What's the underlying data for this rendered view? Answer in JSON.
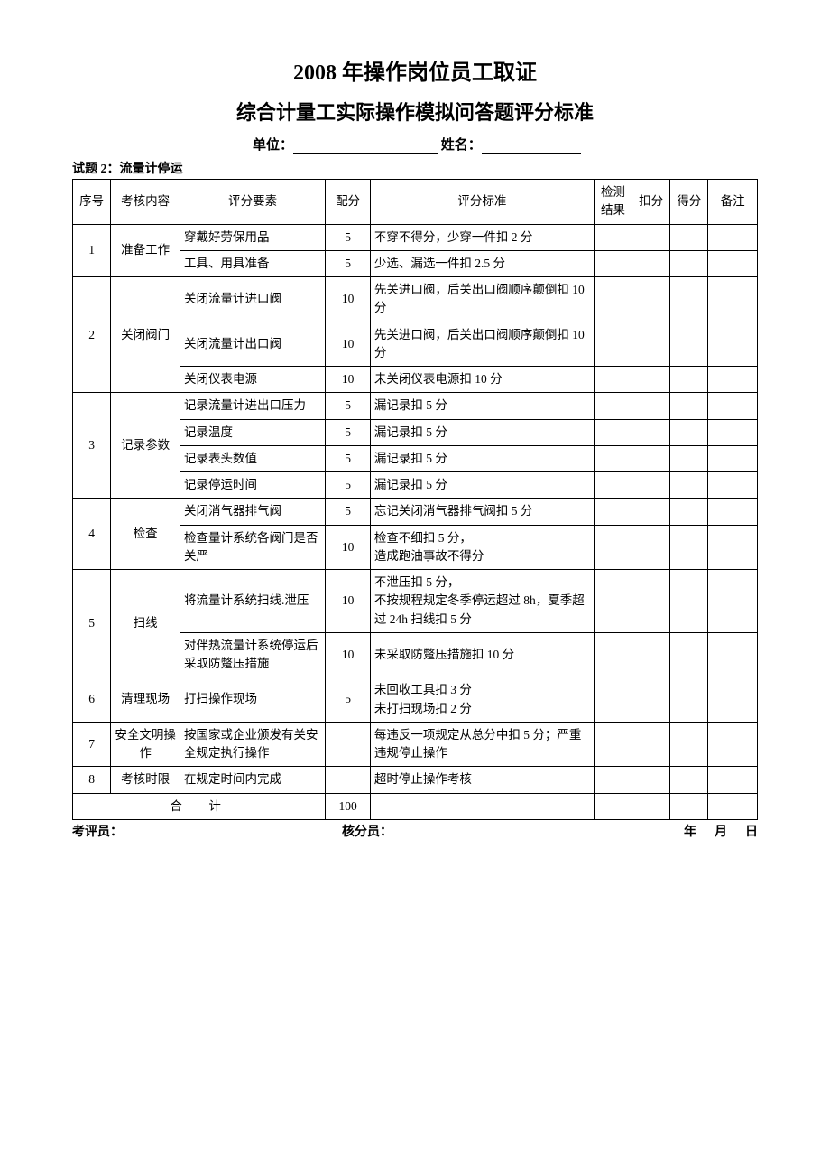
{
  "titles": {
    "line1": "2008 年操作岗位员工取证",
    "line2": "综合计量工实际操作模拟问答题评分标准"
  },
  "header": {
    "unit_label": "单位：",
    "name_label": "姓名：",
    "question_title": "试题 2：流量计停运"
  },
  "table": {
    "columns": {
      "seq": "序号",
      "content": "考核内容",
      "element": "评分要素",
      "score": "配分",
      "standard": "评分标准",
      "result": "检测结果",
      "deduct": "扣分",
      "gained": "得分",
      "remark": "备注"
    },
    "groups": [
      {
        "seq": "1",
        "content": "准备工作",
        "rows": [
          {
            "element": "穿戴好劳保用品",
            "score": "5",
            "standard": "不穿不得分，少穿一件扣 2 分"
          },
          {
            "element": "工具、用具准备",
            "score": "5",
            "standard": "少选、漏选一件扣 2.5 分"
          }
        ]
      },
      {
        "seq": "2",
        "content": "关闭阀门",
        "rows": [
          {
            "element": "关闭流量计进口阀",
            "score": "10",
            "standard": "先关进口阀，后关出口阀顺序颠倒扣 10 分"
          },
          {
            "element": "关闭流量计出口阀",
            "score": "10",
            "standard": "先关进口阀，后关出口阀顺序颠倒扣 10 分"
          },
          {
            "element": "关闭仪表电源",
            "score": "10",
            "standard": "未关闭仪表电源扣 10 分"
          }
        ]
      },
      {
        "seq": "3",
        "content": "记录参数",
        "rows": [
          {
            "element": "记录流量计进出口压力",
            "score": "5",
            "standard": "漏记录扣 5 分"
          },
          {
            "element": "记录温度",
            "score": "5",
            "standard": "漏记录扣 5 分"
          },
          {
            "element": "记录表头数值",
            "score": "5",
            "standard": "漏记录扣 5 分"
          },
          {
            "element": "记录停运时间",
            "score": "5",
            "standard": "漏记录扣 5 分"
          }
        ]
      },
      {
        "seq": "4",
        "content": "检查",
        "rows": [
          {
            "element": "关闭消气器排气阀",
            "score": "5",
            "standard": "忘记关闭消气器排气阀扣 5 分"
          },
          {
            "element": "检查量计系统各阀门是否关严",
            "score": "10",
            "standard": "检查不细扣 5 分，\n造成跑油事故不得分"
          }
        ]
      },
      {
        "seq": "5",
        "content": "扫线",
        "rows": [
          {
            "element": "将流量计系统扫线.泄压",
            "score": "10",
            "standard": "不泄压扣 5 分，\n不按规程规定冬季停运超过 8h，夏季超过 24h 扫线扣 5 分"
          },
          {
            "element": "对伴热流量计系统停运后采取防蹩压措施",
            "score": "10",
            "standard": "未采取防蹩压措施扣 10 分"
          }
        ]
      },
      {
        "seq": "6",
        "content": "清理现场",
        "rows": [
          {
            "element": "打扫操作现场",
            "score": "5",
            "standard": "未回收工具扣 3 分\n未打扫现场扣 2 分"
          }
        ]
      },
      {
        "seq": "7",
        "content": "安全文明操作",
        "rows": [
          {
            "element": "按国家或企业颁发有关安全规定执行操作",
            "score": "",
            "standard": "每违反一项规定从总分中扣 5 分；严重违规停止操作"
          }
        ]
      },
      {
        "seq": "8",
        "content": "考核时限",
        "rows": [
          {
            "element": "在规定时间内完成",
            "score": "",
            "standard": "超时停止操作考核"
          }
        ]
      }
    ],
    "total": {
      "label": "合　计",
      "score": "100"
    }
  },
  "footer": {
    "evaluator": "考评员：",
    "checker": "核分员：",
    "year": "年",
    "month": "月",
    "day": "日"
  }
}
